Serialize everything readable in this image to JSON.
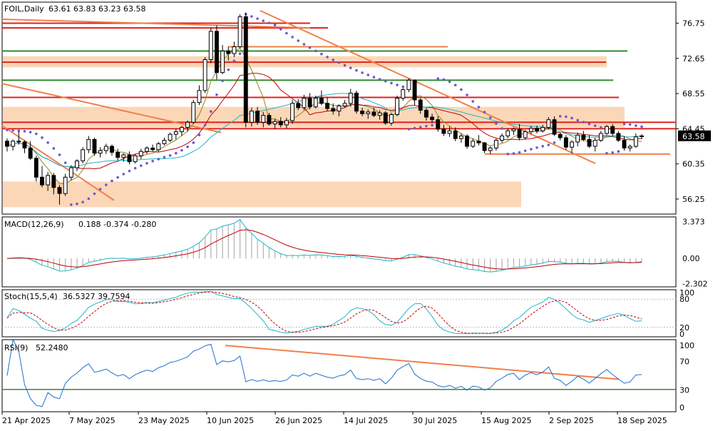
{
  "chart_data": [
    {
      "type": "candlestick",
      "symbol_label": "FOIL,Daily",
      "ohlc_label": "63.61 63.83 63.23 63.58",
      "last_price": 63.58,
      "y_ticks": [
        "76.75",
        "72.65",
        "68.55",
        "64.45",
        "60.35",
        "56.25"
      ],
      "y_tick_values": [
        76.75,
        72.65,
        68.55,
        64.45,
        60.35,
        56.25
      ],
      "ylim": [
        54.5,
        79.2
      ],
      "x_labels": [
        "21 Apr 2025",
        "7 May 2025",
        "23 May 2025",
        "10 Jun 2025",
        "26 Jun 2025",
        "14 Jul 2025",
        "30 Jul 2025",
        "15 Aug 2025",
        "2 Sep 2025",
        "18 Sep 2025"
      ],
      "candles": [
        [
          63.0,
          63.3,
          61.8,
          62.4
        ],
        [
          62.4,
          63.2,
          61.9,
          63.0
        ],
        [
          63.0,
          64.1,
          62.6,
          62.9
        ],
        [
          62.9,
          63.1,
          61.6,
          62.2
        ],
        [
          62.2,
          63.0,
          60.8,
          61.0
        ],
        [
          61.0,
          61.3,
          58.3,
          58.8
        ],
        [
          58.8,
          60.1,
          57.6,
          57.9
        ],
        [
          57.9,
          59.4,
          57.2,
          59.0
        ],
        [
          59.0,
          59.3,
          56.8,
          57.6
        ],
        [
          57.6,
          57.9,
          55.6,
          56.9
        ],
        [
          56.9,
          59.2,
          56.6,
          58.8
        ],
        [
          58.8,
          60.2,
          58.4,
          59.9
        ],
        [
          59.9,
          60.9,
          59.5,
          60.7
        ],
        [
          60.7,
          62.3,
          60.4,
          62.0
        ],
        [
          62.0,
          63.6,
          61.6,
          63.2
        ],
        [
          63.2,
          63.4,
          61.3,
          61.6
        ],
        [
          61.6,
          62.3,
          61.1,
          61.9
        ],
        [
          61.9,
          62.7,
          61.5,
          62.4
        ],
        [
          62.4,
          62.6,
          61.3,
          61.7
        ],
        [
          61.7,
          62.1,
          60.8,
          61.1
        ],
        [
          61.1,
          61.6,
          60.6,
          61.4
        ],
        [
          61.4,
          61.8,
          60.3,
          60.6
        ],
        [
          60.6,
          61.5,
          60.4,
          61.3
        ],
        [
          61.3,
          62.1,
          60.9,
          61.8
        ],
        [
          61.8,
          62.4,
          61.5,
          62.2
        ],
        [
          62.2,
          62.6,
          61.8,
          62.0
        ],
        [
          62.0,
          62.9,
          61.7,
          62.7
        ],
        [
          62.7,
          63.4,
          62.5,
          63.1
        ],
        [
          63.1,
          64.0,
          62.9,
          63.8
        ],
        [
          63.8,
          64.4,
          63.2,
          64.1
        ],
        [
          64.1,
          64.8,
          63.6,
          64.6
        ],
        [
          64.6,
          65.4,
          64.1,
          65.2
        ],
        [
          65.2,
          67.8,
          65.0,
          67.5
        ],
        [
          67.5,
          69.5,
          67.2,
          68.9
        ],
        [
          68.9,
          72.8,
          68.6,
          72.5
        ],
        [
          72.5,
          76.2,
          72.1,
          75.8
        ],
        [
          75.8,
          76.5,
          70.2,
          71.0
        ],
        [
          71.0,
          74.2,
          70.8,
          73.5
        ],
        [
          73.5,
          74.0,
          72.4,
          73.2
        ],
        [
          73.2,
          74.6,
          72.8,
          74.0
        ],
        [
          74.0,
          77.8,
          73.8,
          77.5
        ],
        [
          77.5,
          78.0,
          64.6,
          65.2
        ],
        [
          65.2,
          66.9,
          64.7,
          66.5
        ],
        [
          66.5,
          67.0,
          64.9,
          65.2
        ],
        [
          65.2,
          66.4,
          64.6,
          66.0
        ],
        [
          66.0,
          66.3,
          64.8,
          65.0
        ],
        [
          65.0,
          65.6,
          64.4,
          65.3
        ],
        [
          65.3,
          65.8,
          64.6,
          64.9
        ],
        [
          64.9,
          65.7,
          64.5,
          65.4
        ],
        [
          65.4,
          67.8,
          65.0,
          67.4
        ],
        [
          67.4,
          67.9,
          66.6,
          66.9
        ],
        [
          66.9,
          68.4,
          66.6,
          68.0
        ],
        [
          68.0,
          68.6,
          66.7,
          67.0
        ],
        [
          67.0,
          68.3,
          66.8,
          68.0
        ],
        [
          68.0,
          68.9,
          67.2,
          67.4
        ],
        [
          67.4,
          68.1,
          66.5,
          66.8
        ],
        [
          66.8,
          67.4,
          66.1,
          66.5
        ],
        [
          66.5,
          67.3,
          65.9,
          67.1
        ],
        [
          67.1,
          67.8,
          66.9,
          67.4
        ],
        [
          67.4,
          69.1,
          67.0,
          68.6
        ],
        [
          68.6,
          68.9,
          66.2,
          66.5
        ],
        [
          66.5,
          66.9,
          65.9,
          66.2
        ],
        [
          66.2,
          66.7,
          65.6,
          66.4
        ],
        [
          66.4,
          66.9,
          65.8,
          66.0
        ],
        [
          66.0,
          66.6,
          65.5,
          66.3
        ],
        [
          66.3,
          66.5,
          64.9,
          65.1
        ],
        [
          65.1,
          66.3,
          64.8,
          66.1
        ],
        [
          66.1,
          68.3,
          65.9,
          68.0
        ],
        [
          68.0,
          69.2,
          67.7,
          69.0
        ],
        [
          69.0,
          70.3,
          68.7,
          70.1
        ],
        [
          70.1,
          70.2,
          67.2,
          67.8
        ],
        [
          67.8,
          68.0,
          66.2,
          66.6
        ],
        [
          66.6,
          66.9,
          65.4,
          65.8
        ],
        [
          65.8,
          66.2,
          65.1,
          65.5
        ],
        [
          65.5,
          65.9,
          64.1,
          64.4
        ],
        [
          64.4,
          64.9,
          63.6,
          63.9
        ],
        [
          63.9,
          64.7,
          63.5,
          64.2
        ],
        [
          64.2,
          64.6,
          63.0,
          63.3
        ],
        [
          63.3,
          63.9,
          62.8,
          63.6
        ],
        [
          63.6,
          63.8,
          62.1,
          62.4
        ],
        [
          62.4,
          63.3,
          62.2,
          63.0
        ],
        [
          63.0,
          63.7,
          62.5,
          62.8
        ],
        [
          62.8,
          62.9,
          61.6,
          61.9
        ],
        [
          61.9,
          62.4,
          61.5,
          62.2
        ],
        [
          62.2,
          63.3,
          61.9,
          63.1
        ],
        [
          63.1,
          63.9,
          62.8,
          63.6
        ],
        [
          63.6,
          64.5,
          63.3,
          64.2
        ],
        [
          64.2,
          64.6,
          63.7,
          64.4
        ],
        [
          64.4,
          65.0,
          63.1,
          63.4
        ],
        [
          63.4,
          64.3,
          63.2,
          64.1
        ],
        [
          64.1,
          64.8,
          63.8,
          64.5
        ],
        [
          64.5,
          64.8,
          63.9,
          64.2
        ],
        [
          64.2,
          64.9,
          64.0,
          64.6
        ],
        [
          64.6,
          65.8,
          64.4,
          65.5
        ],
        [
          65.5,
          65.9,
          63.6,
          63.8
        ],
        [
          63.8,
          64.0,
          63.1,
          63.4
        ],
        [
          63.4,
          63.7,
          62.0,
          62.3
        ],
        [
          62.3,
          63.1,
          61.6,
          62.9
        ],
        [
          62.9,
          64.0,
          62.4,
          63.7
        ],
        [
          63.7,
          64.2,
          63.0,
          63.2
        ],
        [
          63.2,
          63.7,
          62.2,
          62.4
        ],
        [
          62.4,
          63.4,
          61.8,
          63.1
        ],
        [
          63.1,
          64.2,
          62.9,
          63.9
        ],
        [
          63.9,
          64.9,
          63.7,
          64.7
        ],
        [
          64.7,
          65.0,
          63.6,
          63.9
        ],
        [
          63.9,
          64.2,
          62.9,
          63.1
        ],
        [
          63.1,
          63.6,
          61.9,
          62.2
        ],
        [
          62.2,
          62.6,
          61.8,
          62.4
        ],
        [
          62.4,
          63.9,
          62.2,
          63.5
        ],
        [
          63.61,
          63.83,
          63.23,
          63.58
        ]
      ],
      "horizontal_lines": [
        {
          "value": 76.75,
          "color": "#e0201c"
        },
        {
          "value": 72.2,
          "color": "#e0201c"
        },
        {
          "value": 70.1,
          "color": "#2e8b2e"
        },
        {
          "value": 73.5,
          "color": "#2e8b2e"
        },
        {
          "value": 68.1,
          "color": "#e0201c"
        },
        {
          "value": 65.2,
          "color": "#e0201c"
        },
        {
          "value": 64.45,
          "color": "#e0201c"
        }
      ],
      "zones": [
        {
          "from": 71.6,
          "to": 72.9,
          "color": "#fbd3b0"
        },
        {
          "from": 64.6,
          "to": 67.0,
          "color": "#fbd3b0"
        },
        {
          "from": 55.3,
          "to": 58.3,
          "color": "#fbd3b0"
        }
      ],
      "price_tag": {
        "value": 63.58,
        "label": "63.58",
        "bg": "#000000",
        "fg": "#ffffff"
      }
    },
    {
      "type": "line",
      "name": "MACD(12,26,9)",
      "values_label": "0.188 -0.374 -0.280",
      "y_ticks": [
        "3.373",
        "0.00",
        "-2.302"
      ],
      "ylim": [
        -2.6,
        3.8
      ]
    },
    {
      "type": "line",
      "name": "Stoch(15,5,4)",
      "values_label": "36.5327 39.7594",
      "y_ticks": [
        "100",
        "80",
        "20",
        "0"
      ],
      "ylim": [
        0,
        100
      ]
    },
    {
      "type": "line",
      "name": "RSI(9)",
      "values_label": "52.2480",
      "y_ticks": [
        "100",
        "70",
        "30",
        "0"
      ],
      "ylim": [
        0,
        100
      ],
      "level_line": {
        "value": 31,
        "color": "#2e8b2e"
      }
    }
  ],
  "colors": {
    "bull": "#ffffff",
    "bear": "#000000",
    "ma_fast": "#8b8b1a",
    "ma_mid": "#c00000",
    "ma_slow": "#1fb5c9",
    "trend": "#f0814a",
    "psar": "#6a5acd",
    "signal": "#c00000",
    "macd_hist": "#b0b0b0",
    "main": "#1e6fd0",
    "stoch_signal": "#c00000"
  }
}
